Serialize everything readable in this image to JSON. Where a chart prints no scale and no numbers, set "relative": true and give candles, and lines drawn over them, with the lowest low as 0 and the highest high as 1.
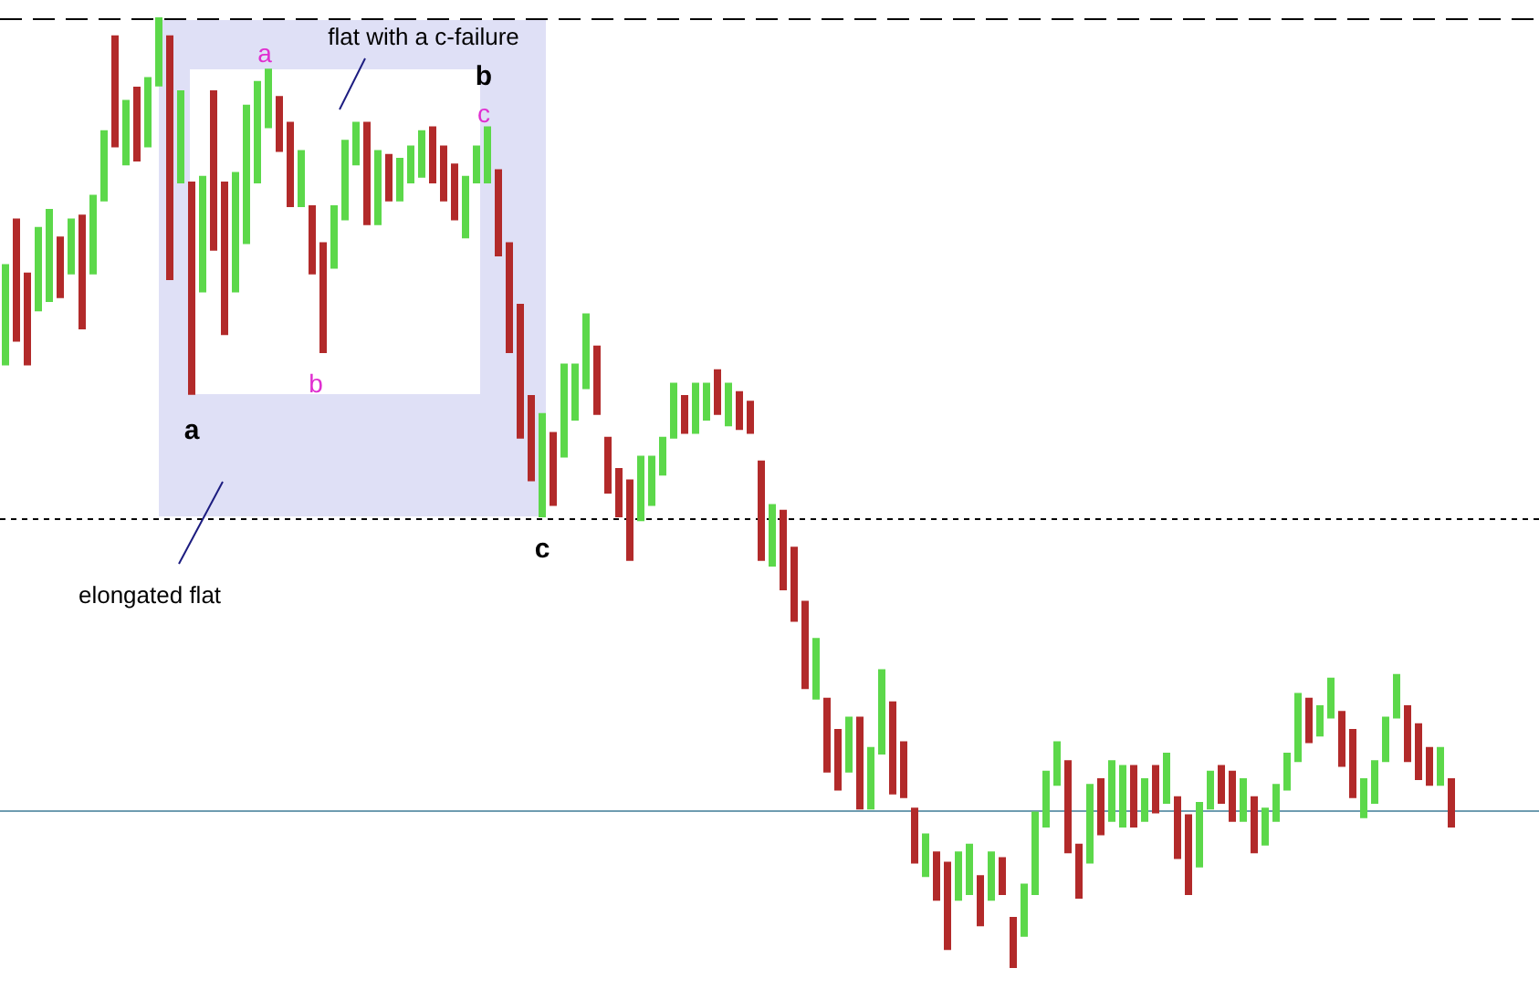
{
  "chart_data": {
    "type": "candlestick",
    "relative": true,
    "categories": [
      null,
      null,
      null,
      null,
      null,
      null,
      null,
      null,
      null,
      null,
      null,
      null,
      null,
      null,
      null,
      null,
      null,
      null,
      null,
      null,
      null,
      null,
      null,
      null,
      null,
      null,
      null,
      null,
      null,
      null,
      null,
      null,
      null,
      null,
      null,
      null,
      null,
      null,
      null,
      null,
      null,
      null,
      null,
      null,
      null,
      null,
      null,
      null,
      null,
      null,
      null,
      null,
      null,
      null,
      null,
      null,
      null,
      null,
      null,
      null,
      null,
      null,
      null,
      null,
      null,
      null,
      null,
      null,
      null,
      null,
      null,
      null,
      null,
      null,
      null,
      null,
      null,
      null,
      null,
      null,
      null,
      null,
      null,
      null,
      null,
      null,
      null,
      null,
      null,
      null,
      null,
      null,
      null,
      null,
      null,
      null,
      null,
      null,
      null,
      null,
      null,
      null,
      null,
      null,
      null,
      null,
      null,
      null,
      null,
      null,
      null,
      null,
      null,
      null,
      null,
      null,
      null,
      null,
      null,
      null,
      null,
      null,
      null,
      null,
      null,
      null,
      null,
      null,
      null,
      null,
      null,
      null,
      null
    ],
    "ohlc": [
      [
        0.635,
        0.74,
        0.635,
        0.74
      ],
      [
        0.788,
        0.788,
        0.66,
        0.66
      ],
      [
        0.731,
        0.731,
        0.635,
        0.635
      ],
      [
        0.692,
        0.779,
        0.692,
        0.779
      ],
      [
        0.702,
        0.798,
        0.702,
        0.798
      ],
      [
        0.769,
        0.769,
        0.706,
        0.706
      ],
      [
        0.731,
        0.788,
        0.731,
        0.788
      ],
      [
        0.792,
        0.792,
        0.673,
        0.673
      ],
      [
        0.731,
        0.813,
        0.731,
        0.813
      ],
      [
        0.808,
        0.881,
        0.808,
        0.881
      ],
      [
        0.981,
        0.981,
        0.865,
        0.865
      ],
      [
        0.846,
        0.913,
        0.846,
        0.913
      ],
      [
        0.927,
        0.927,
        0.85,
        0.85
      ],
      [
        0.865,
        0.937,
        0.865,
        0.937
      ],
      [
        0.929,
        1,
        0.929,
        1
      ],
      [
        0.981,
        0.981,
        0.725,
        0.725
      ],
      [
        0.827,
        0.923,
        0.827,
        0.923
      ],
      [
        0.827,
        0.827,
        0.604,
        0.604
      ],
      [
        0.712,
        0.833,
        0.712,
        0.833
      ],
      [
        0.923,
        0.923,
        0.756,
        0.756
      ],
      [
        0.827,
        0.827,
        0.667,
        0.667
      ],
      [
        0.712,
        0.837,
        0.712,
        0.837
      ],
      [
        0.763,
        0.908,
        0.763,
        0.908
      ],
      [
        0.827,
        0.933,
        0.827,
        0.933
      ],
      [
        0.885,
        0.946,
        0.885,
        0.946
      ],
      [
        0.917,
        0.917,
        0.86,
        0.86
      ],
      [
        0.89,
        0.89,
        0.802,
        0.802
      ],
      [
        0.802,
        0.86,
        0.802,
        0.86
      ],
      [
        0.802,
        0.802,
        0.731,
        0.731
      ],
      [
        0.763,
        0.763,
        0.648,
        0.648
      ],
      [
        0.737,
        0.802,
        0.737,
        0.802
      ],
      [
        0.788,
        0.871,
        0.788,
        0.871
      ],
      [
        0.846,
        0.89,
        0.846,
        0.89
      ],
      [
        0.89,
        0.89,
        0.783,
        0.783
      ],
      [
        0.783,
        0.86,
        0.783,
        0.86
      ],
      [
        0.856,
        0.856,
        0.808,
        0.808
      ],
      [
        0.808,
        0.852,
        0.808,
        0.852
      ],
      [
        0.827,
        0.865,
        0.827,
        0.865
      ],
      [
        0.833,
        0.881,
        0.833,
        0.881
      ],
      [
        0.885,
        0.885,
        0.827,
        0.827
      ],
      [
        0.865,
        0.865,
        0.808,
        0.808
      ],
      [
        0.846,
        0.846,
        0.788,
        0.788
      ],
      [
        0.769,
        0.833,
        0.769,
        0.833
      ],
      [
        0.827,
        0.865,
        0.827,
        0.865
      ],
      [
        0.827,
        0.885,
        0.827,
        0.885
      ],
      [
        0.84,
        0.84,
        0.75,
        0.75
      ],
      [
        0.763,
        0.763,
        0.648,
        0.648
      ],
      [
        0.698,
        0.698,
        0.558,
        0.558
      ],
      [
        0.602,
        0.602,
        0.513,
        0.513
      ],
      [
        0.475,
        0.583,
        0.475,
        0.583
      ],
      [
        0.563,
        0.563,
        0.487,
        0.487
      ],
      [
        0.538,
        0.635,
        0.538,
        0.635
      ],
      [
        0.577,
        0.635,
        0.577,
        0.635
      ],
      [
        0.61,
        0.688,
        0.61,
        0.688
      ],
      [
        0.654,
        0.654,
        0.583,
        0.583
      ],
      [
        0.558,
        0.558,
        0.5,
        0.5
      ],
      [
        0.525,
        0.525,
        0.475,
        0.475
      ],
      [
        0.513,
        0.513,
        0.429,
        0.429
      ],
      [
        0.471,
        0.538,
        0.471,
        0.538
      ],
      [
        0.487,
        0.538,
        0.487,
        0.538
      ],
      [
        0.519,
        0.558,
        0.519,
        0.558
      ],
      [
        0.558,
        0.615,
        0.558,
        0.615
      ],
      [
        0.602,
        0.602,
        0.563,
        0.563
      ],
      [
        0.563,
        0.615,
        0.563,
        0.615
      ],
      [
        0.577,
        0.615,
        0.577,
        0.615
      ],
      [
        0.629,
        0.629,
        0.583,
        0.583
      ],
      [
        0.571,
        0.615,
        0.571,
        0.615
      ],
      [
        0.606,
        0.606,
        0.567,
        0.567
      ],
      [
        0.596,
        0.596,
        0.563,
        0.563
      ],
      [
        0.533,
        0.533,
        0.429,
        0.429
      ],
      [
        0.423,
        0.487,
        0.423,
        0.487
      ],
      [
        0.481,
        0.481,
        0.398,
        0.398
      ],
      [
        0.442,
        0.442,
        0.365,
        0.365
      ],
      [
        0.385,
        0.385,
        0.294,
        0.294
      ],
      [
        0.283,
        0.346,
        0.283,
        0.346
      ],
      [
        0.283,
        0.283,
        0.206,
        0.206
      ],
      [
        0.25,
        0.25,
        0.187,
        0.187
      ],
      [
        0.206,
        0.263,
        0.206,
        0.263
      ],
      [
        0.263,
        0.263,
        0.167,
        0.167
      ],
      [
        0.167,
        0.231,
        0.167,
        0.231
      ],
      [
        0.225,
        0.313,
        0.225,
        0.313
      ],
      [
        0.279,
        0.279,
        0.183,
        0.183
      ],
      [
        0.237,
        0.237,
        0.179,
        0.179
      ],
      [
        0.167,
        0.167,
        0.11,
        0.11
      ],
      [
        0.096,
        0.14,
        0.096,
        0.14
      ],
      [
        0.121,
        0.121,
        0.071,
        0.071
      ],
      [
        0.11,
        0.11,
        0.019,
        0.019
      ],
      [
        0.071,
        0.121,
        0.071,
        0.121
      ],
      [
        0.077,
        0.129,
        0.077,
        0.129
      ],
      [
        0.096,
        0.096,
        0.044,
        0.044
      ],
      [
        0.071,
        0.121,
        0.071,
        0.121
      ],
      [
        0.115,
        0.115,
        0.077,
        0.077
      ],
      [
        0.052,
        0.052,
        0,
        0
      ],
      [
        0.033,
        0.087,
        0.033,
        0.087
      ],
      [
        0.077,
        0.163,
        0.077,
        0.163
      ],
      [
        0.148,
        0.206,
        0.148,
        0.206
      ],
      [
        0.192,
        0.237,
        0.192,
        0.237
      ],
      [
        0.217,
        0.217,
        0.121,
        0.121
      ],
      [
        0.129,
        0.129,
        0.073,
        0.073
      ],
      [
        0.11,
        0.192,
        0.11,
        0.192
      ],
      [
        0.198,
        0.198,
        0.14,
        0.14
      ],
      [
        0.154,
        0.217,
        0.154,
        0.217
      ],
      [
        0.148,
        0.212,
        0.148,
        0.212
      ],
      [
        0.212,
        0.212,
        0.148,
        0.148
      ],
      [
        0.154,
        0.198,
        0.154,
        0.198
      ],
      [
        0.212,
        0.212,
        0.163,
        0.163
      ],
      [
        0.173,
        0.225,
        0.173,
        0.225
      ],
      [
        0.179,
        0.179,
        0.115,
        0.115
      ],
      [
        0.16,
        0.16,
        0.077,
        0.077
      ],
      [
        0.106,
        0.173,
        0.106,
        0.173
      ],
      [
        0.167,
        0.206,
        0.167,
        0.206
      ],
      [
        0.212,
        0.212,
        0.173,
        0.173
      ],
      [
        0.206,
        0.206,
        0.154,
        0.154
      ],
      [
        0.154,
        0.198,
        0.154,
        0.198
      ],
      [
        0.179,
        0.179,
        0.121,
        0.121
      ],
      [
        0.129,
        0.167,
        0.129,
        0.167
      ],
      [
        0.154,
        0.192,
        0.154,
        0.192
      ],
      [
        0.187,
        0.225,
        0.187,
        0.225
      ],
      [
        0.217,
        0.288,
        0.217,
        0.288
      ],
      [
        0.283,
        0.283,
        0.237,
        0.237
      ],
      [
        0.244,
        0.275,
        0.244,
        0.275
      ],
      [
        0.263,
        0.304,
        0.263,
        0.304
      ],
      [
        0.269,
        0.269,
        0.212,
        0.212
      ],
      [
        0.25,
        0.25,
        0.179,
        0.179
      ],
      [
        0.158,
        0.198,
        0.158,
        0.198
      ],
      [
        0.173,
        0.217,
        0.173,
        0.217
      ],
      [
        0.217,
        0.263,
        0.217,
        0.263
      ],
      [
        0.263,
        0.308,
        0.263,
        0.308
      ],
      [
        0.275,
        0.275,
        0.217,
        0.217
      ],
      [
        0.256,
        0.256,
        0.198,
        0.198
      ],
      [
        0.231,
        0.231,
        0.192,
        0.192
      ],
      [
        0.192,
        0.231,
        0.192,
        0.231
      ],
      [
        0.198,
        0.198,
        0.148,
        0.148
      ]
    ],
    "colors": [
      "#5cd84a",
      "#b22a2a",
      "#b22a2a",
      "#5cd84a",
      "#5cd84a",
      "#b22a2a",
      "#5cd84a",
      "#b22a2a",
      "#5cd84a",
      "#5cd84a",
      "#b22a2a",
      "#5cd84a",
      "#b22a2a",
      "#5cd84a",
      "#5cd84a",
      "#b22a2a",
      "#5cd84a",
      "#b22a2a",
      "#5cd84a",
      "#b22a2a",
      "#b22a2a",
      "#5cd84a",
      "#5cd84a",
      "#5cd84a",
      "#5cd84a",
      "#b22a2a",
      "#b22a2a",
      "#5cd84a",
      "#b22a2a",
      "#b22a2a",
      "#5cd84a",
      "#5cd84a",
      "#5cd84a",
      "#b22a2a",
      "#5cd84a",
      "#b22a2a",
      "#5cd84a",
      "#5cd84a",
      "#5cd84a",
      "#b22a2a",
      "#b22a2a",
      "#b22a2a",
      "#5cd84a",
      "#5cd84a",
      "#5cd84a",
      "#b22a2a",
      "#b22a2a",
      "#b22a2a",
      "#b22a2a",
      "#5cd84a",
      "#b22a2a",
      "#5cd84a",
      "#5cd84a",
      "#5cd84a",
      "#b22a2a",
      "#b22a2a",
      "#b22a2a",
      "#b22a2a",
      "#5cd84a",
      "#5cd84a",
      "#5cd84a",
      "#5cd84a",
      "#b22a2a",
      "#5cd84a",
      "#5cd84a",
      "#b22a2a",
      "#5cd84a",
      "#b22a2a",
      "#b22a2a",
      "#b22a2a",
      "#5cd84a",
      "#b22a2a",
      "#b22a2a",
      "#b22a2a",
      "#5cd84a",
      "#b22a2a",
      "#b22a2a",
      "#5cd84a",
      "#b22a2a",
      "#5cd84a",
      "#5cd84a",
      "#b22a2a",
      "#b22a2a",
      "#b22a2a",
      "#5cd84a",
      "#b22a2a",
      "#b22a2a",
      "#5cd84a",
      "#5cd84a",
      "#b22a2a",
      "#5cd84a",
      "#b22a2a",
      "#b22a2a",
      "#5cd84a",
      "#5cd84a",
      "#5cd84a",
      "#5cd84a",
      "#b22a2a",
      "#b22a2a",
      "#5cd84a",
      "#b22a2a",
      "#5cd84a",
      "#5cd84a",
      "#b22a2a",
      "#5cd84a",
      "#b22a2a",
      "#5cd84a",
      "#b22a2a",
      "#b22a2a",
      "#5cd84a",
      "#5cd84a",
      "#b22a2a",
      "#b22a2a",
      "#5cd84a",
      "#b22a2a",
      "#5cd84a",
      "#5cd84a",
      "#5cd84a",
      "#5cd84a",
      "#b22a2a",
      "#5cd84a",
      "#5cd84a",
      "#b22a2a",
      "#b22a2a",
      "#5cd84a",
      "#5cd84a",
      "#5cd84a",
      "#5cd84a",
      "#b22a2a",
      "#b22a2a",
      "#b22a2a",
      "#5cd84a",
      "#b22a2a"
    ],
    "ref_lines": [
      {
        "axis": "y",
        "value": 1,
        "color": "#000000",
        "line_style": "dashed"
      },
      {
        "axis": "y",
        "value": 0.473,
        "color": "#000000",
        "line_style": "dotted"
      },
      {
        "axis": "y",
        "value": 0.165,
        "color": "#6e9cb0",
        "line_style": "solid"
      }
    ],
    "annotations": [
      "a",
      "b",
      "c",
      "a",
      "b",
      "c",
      "flat with a c-failure",
      "elongated flat"
    ]
  }
}
